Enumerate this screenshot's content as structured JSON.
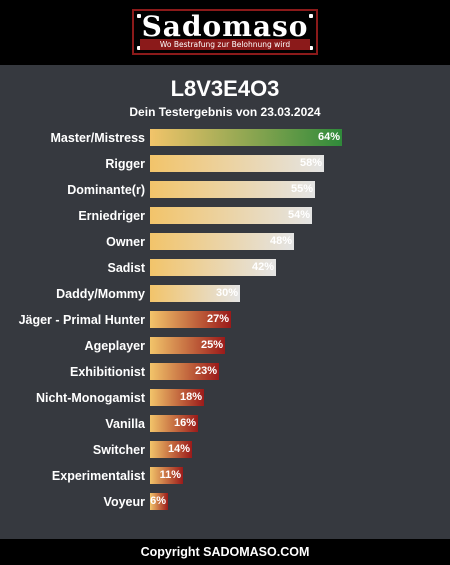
{
  "header": {
    "logo_title": "Sadomaso",
    "logo_slogan": "Wo Bestrafung zur Belohnung wird"
  },
  "result": {
    "id": "L8V3E4O3",
    "subtitle": "Dein Testergebnis von 23.03.2024"
  },
  "colors": {
    "bar_start": "#f2c46a",
    "high_end": "#2f8a3a",
    "mid_end": "#e4e4e4",
    "low_end": "#9b1a1a"
  },
  "results": [
    {
      "label": "Master/Mistress",
      "value": 64,
      "value_text": "64%",
      "tier": "high"
    },
    {
      "label": "Rigger",
      "value": 58,
      "value_text": "58%",
      "tier": "mid"
    },
    {
      "label": "Dominante(r)",
      "value": 55,
      "value_text": "55%",
      "tier": "mid"
    },
    {
      "label": "Erniedriger",
      "value": 54,
      "value_text": "54%",
      "tier": "mid"
    },
    {
      "label": "Owner",
      "value": 48,
      "value_text": "48%",
      "tier": "mid"
    },
    {
      "label": "Sadist",
      "value": 42,
      "value_text": "42%",
      "tier": "mid"
    },
    {
      "label": "Daddy/Mommy",
      "value": 30,
      "value_text": "30%",
      "tier": "mid"
    },
    {
      "label": "Jäger - Primal Hunter",
      "value": 27,
      "value_text": "27%",
      "tier": "low"
    },
    {
      "label": "Ageplayer",
      "value": 25,
      "value_text": "25%",
      "tier": "low"
    },
    {
      "label": "Exhibitionist",
      "value": 23,
      "value_text": "23%",
      "tier": "low"
    },
    {
      "label": "Nicht-Monogamist",
      "value": 18,
      "value_text": "18%",
      "tier": "low"
    },
    {
      "label": "Vanilla",
      "value": 16,
      "value_text": "16%",
      "tier": "low"
    },
    {
      "label": "Switcher",
      "value": 14,
      "value_text": "14%",
      "tier": "low"
    },
    {
      "label": "Experimentalist",
      "value": 11,
      "value_text": "11%",
      "tier": "low"
    },
    {
      "label": "Voyeur",
      "value": 6,
      "value_text": "6%",
      "tier": "low"
    }
  ],
  "footer": {
    "copyright": "Copyright SADOMASO.COM"
  }
}
